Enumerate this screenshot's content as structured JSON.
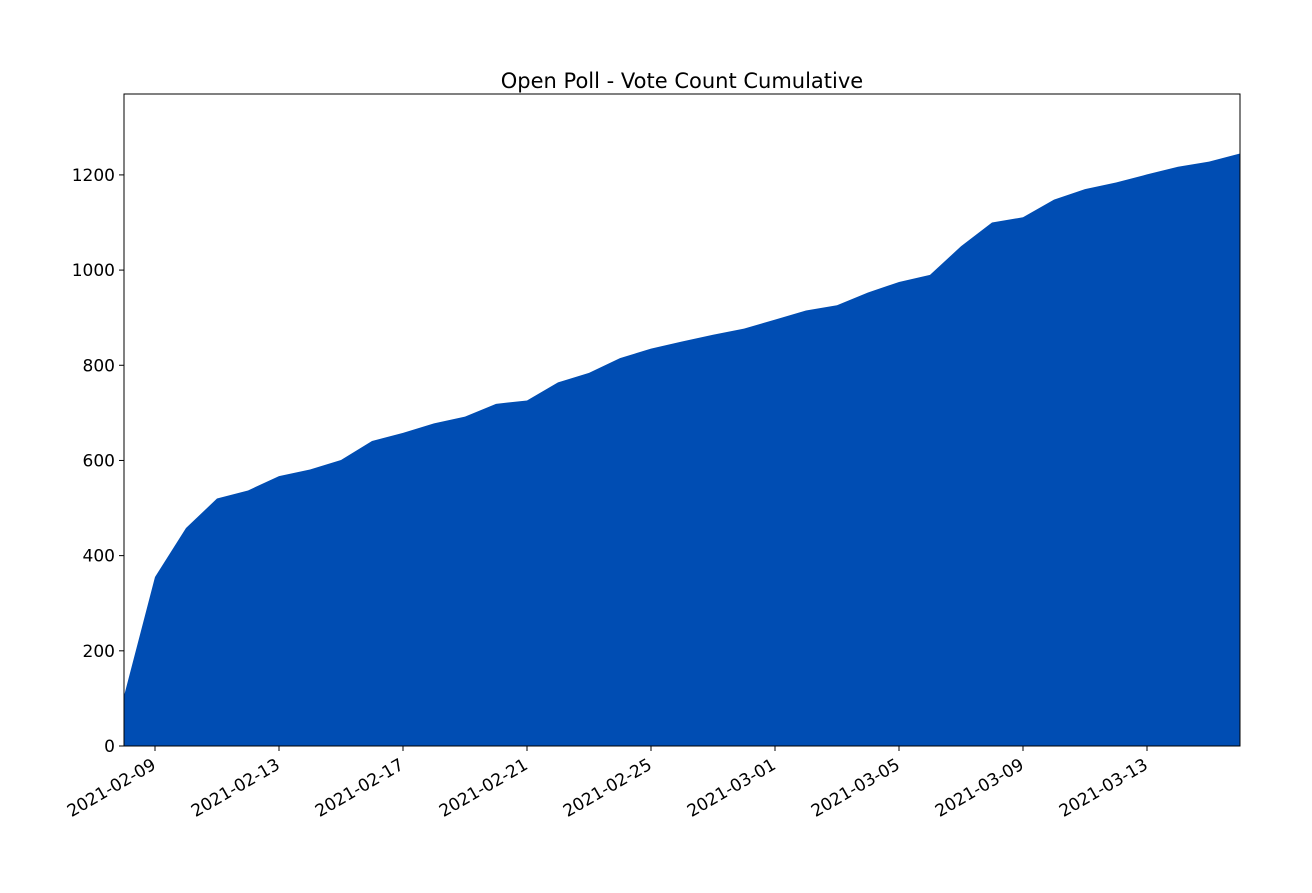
{
  "chart_data": {
    "type": "area",
    "title": "Open Poll - Vote Count Cumulative",
    "xlabel": "",
    "ylabel": "",
    "ylim": [
      0,
      1370
    ],
    "xlim": [
      "2021-02-08",
      "2021-03-16"
    ],
    "x_ticks": [
      "2021-02-09",
      "2021-02-13",
      "2021-02-17",
      "2021-02-21",
      "2021-02-25",
      "2021-03-01",
      "2021-03-05",
      "2021-03-09",
      "2021-03-13"
    ],
    "y_ticks": [
      0,
      200,
      400,
      600,
      800,
      1000,
      1200
    ],
    "grid": false,
    "legend": "none",
    "fill_color": "#004DB3",
    "x": [
      "2021-02-08",
      "2021-02-09",
      "2021-02-10",
      "2021-02-11",
      "2021-02-12",
      "2021-02-13",
      "2021-02-14",
      "2021-02-15",
      "2021-02-16",
      "2021-02-17",
      "2021-02-18",
      "2021-02-19",
      "2021-02-20",
      "2021-02-21",
      "2021-02-22",
      "2021-02-23",
      "2021-02-24",
      "2021-02-25",
      "2021-02-26",
      "2021-02-27",
      "2021-02-28",
      "2021-03-01",
      "2021-03-02",
      "2021-03-03",
      "2021-03-04",
      "2021-03-05",
      "2021-03-06",
      "2021-03-07",
      "2021-03-08",
      "2021-03-09",
      "2021-03-10",
      "2021-03-11",
      "2021-03-12",
      "2021-03-13",
      "2021-03-14",
      "2021-03-15",
      "2021-03-16"
    ],
    "values": [
      105,
      355,
      458,
      520,
      537,
      567,
      581,
      601,
      641,
      658,
      678,
      692,
      719,
      726,
      764,
      784,
      815,
      835,
      850,
      864,
      877,
      896,
      915,
      926,
      953,
      975,
      990,
      1050,
      1100,
      1111,
      1148,
      1170,
      1184,
      1201,
      1217,
      1228,
      1245
    ]
  }
}
